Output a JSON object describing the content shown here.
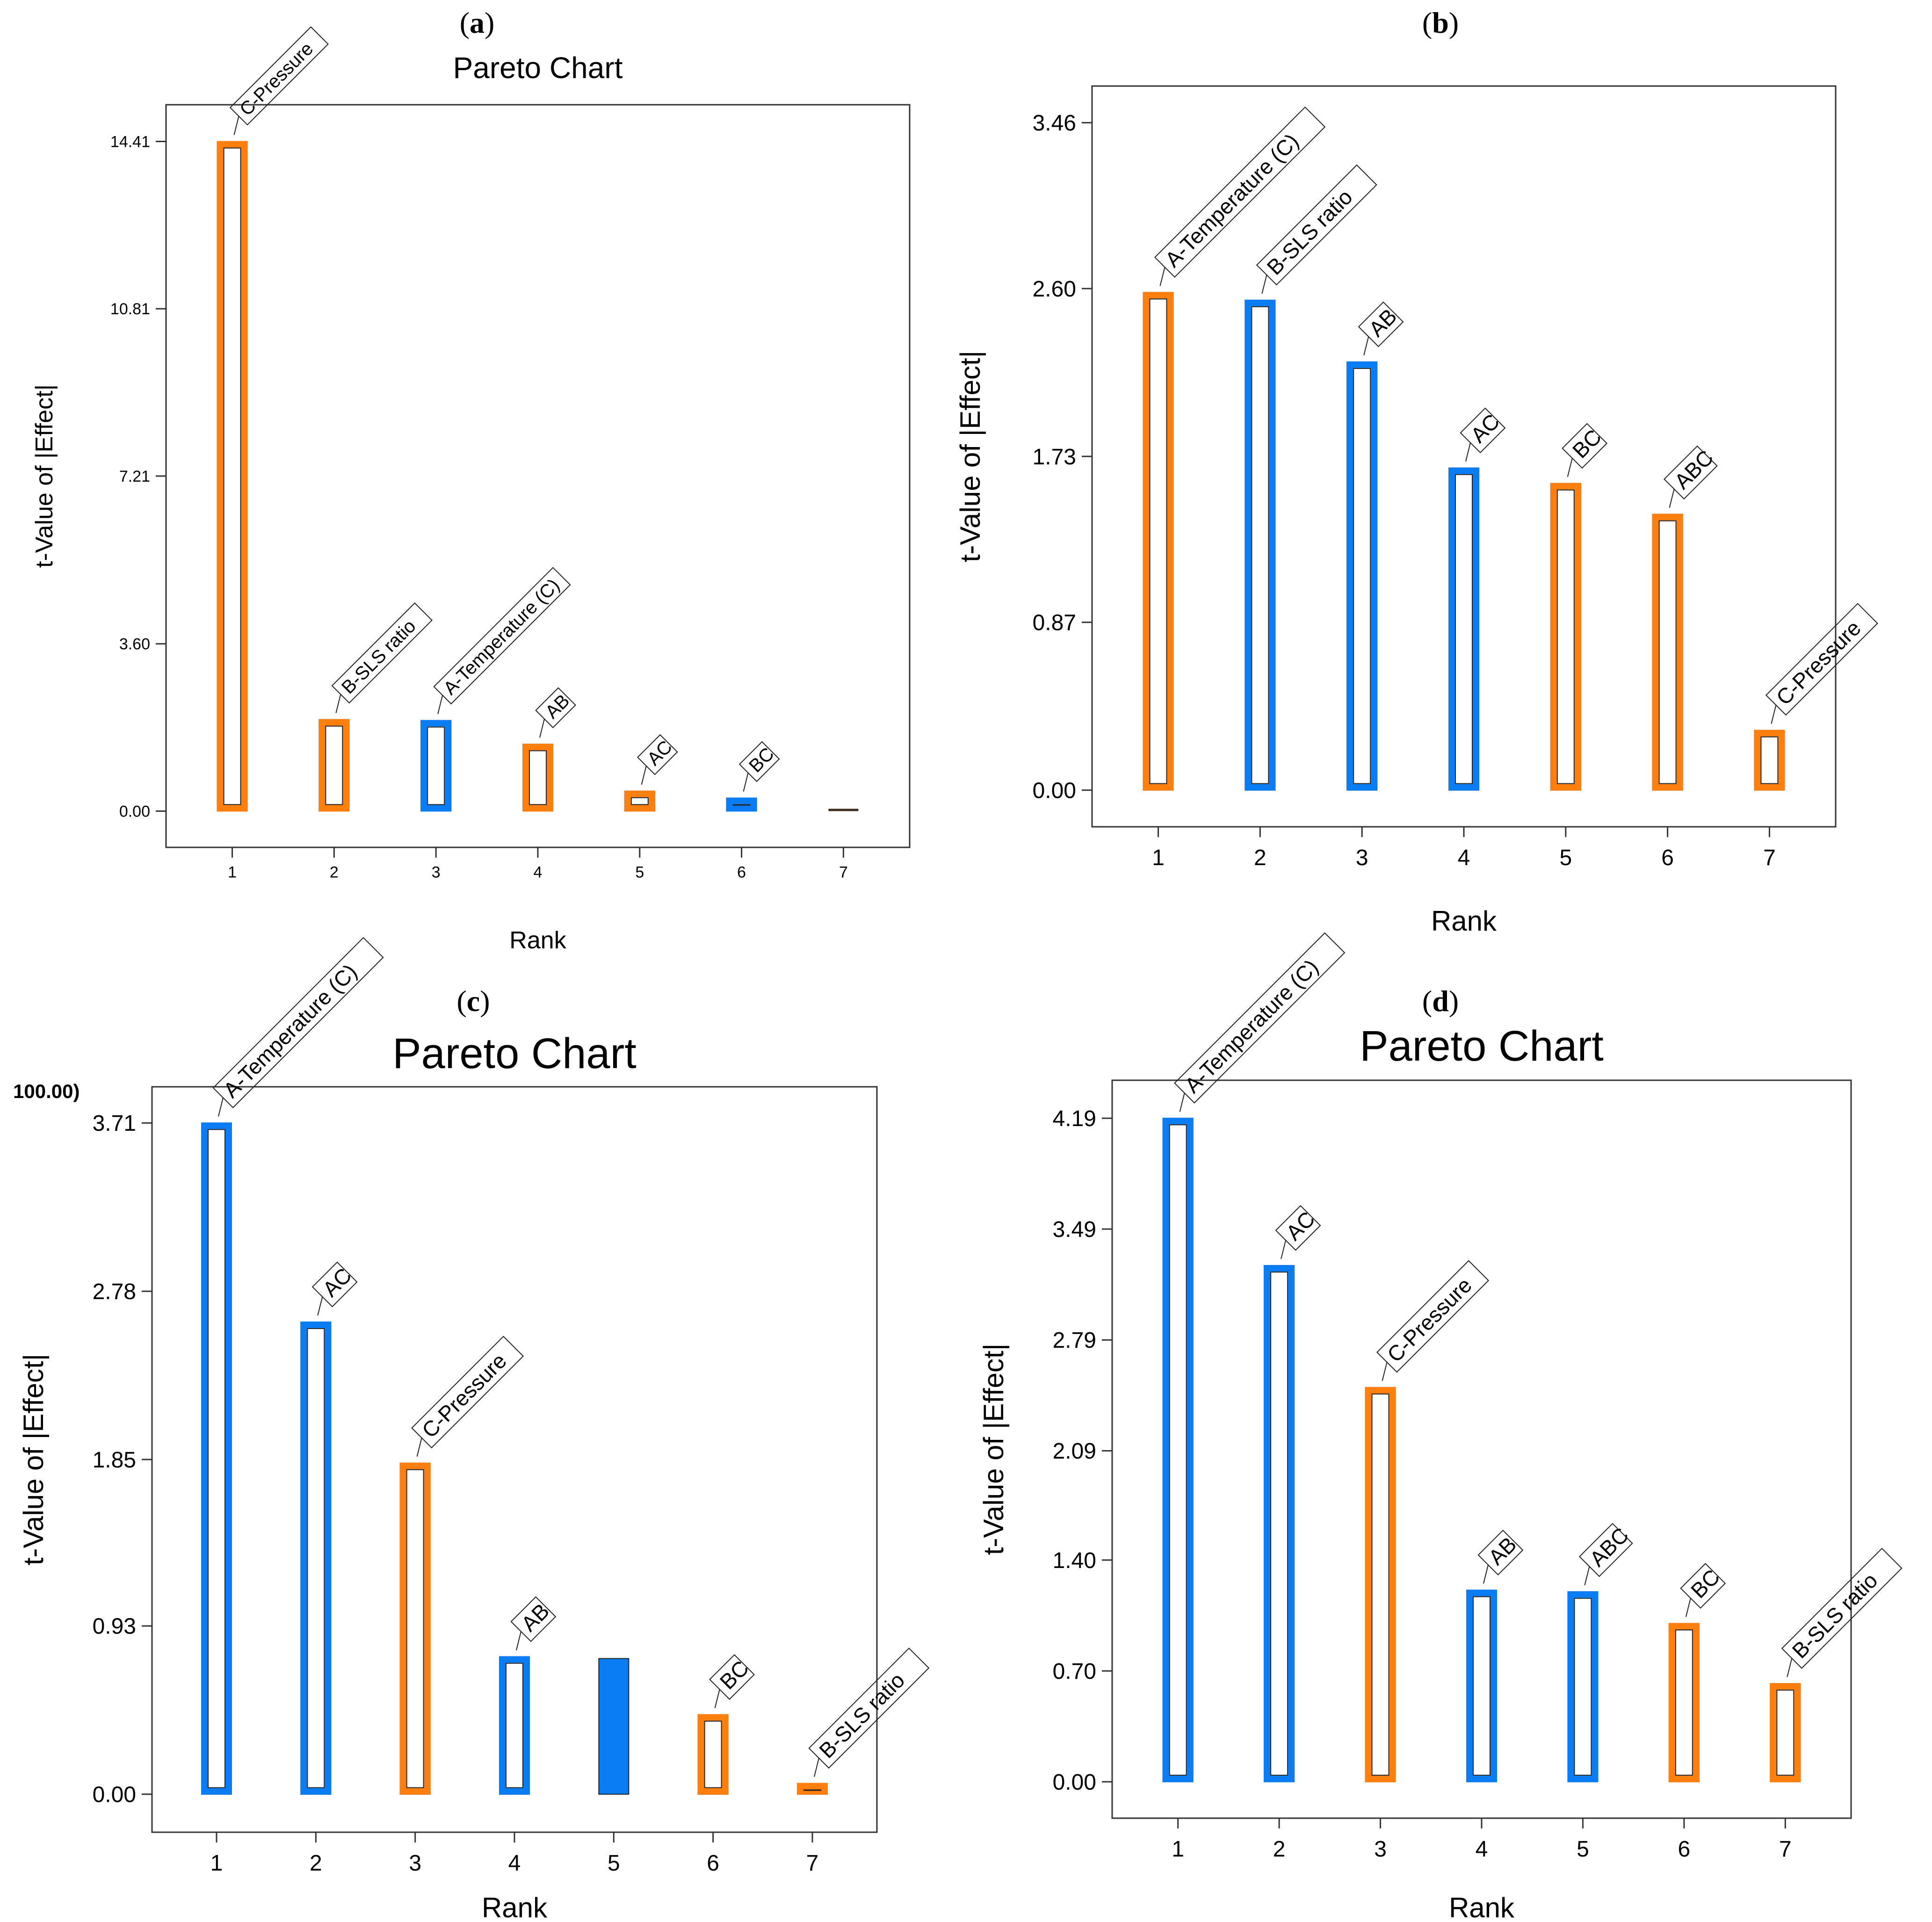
{
  "figure": {
    "colors": {
      "orange": "#FF7F0E",
      "blue": "#0A7DF5",
      "frame": "#333333",
      "dark": "#3a2a1a"
    }
  },
  "chart_data": [
    {
      "panel": "(a)",
      "type": "bar",
      "title": "Pareto Chart",
      "xlabel": "Rank",
      "ylabel": "t-Value of |Effect|",
      "ylim": [
        -0.78,
        15.2
      ],
      "yticks": [
        0.0,
        3.6,
        7.21,
        10.81,
        14.41
      ],
      "ytick_labels": [
        "0.00",
        "3.60",
        "7.21",
        "10.81",
        "14.41"
      ],
      "categories": [
        "1",
        "2",
        "3",
        "4",
        "5",
        "6",
        "7"
      ],
      "values": [
        14.41,
        1.97,
        1.95,
        1.44,
        0.43,
        0.28,
        0.04
      ],
      "bar_colors": [
        "orange",
        "orange",
        "blue",
        "orange",
        "orange",
        "blue",
        "dark"
      ],
      "bar_labels": [
        "C-Pressure",
        "B-SLS ratio",
        "A-Temperature (C)",
        "AB",
        "AC",
        "BC",
        ""
      ],
      "title_size": "small"
    },
    {
      "panel": "(b)",
      "type": "bar",
      "title": "",
      "xlabel": "Rank",
      "ylabel": "t-Value of |Effect|",
      "ylim": [
        -0.19,
        3.65
      ],
      "yticks": [
        0.0,
        0.87,
        1.73,
        2.6,
        3.46
      ],
      "ytick_labels": [
        "0.00",
        "0.87",
        "1.73",
        "2.60",
        "3.46"
      ],
      "categories": [
        "1",
        "2",
        "3",
        "4",
        "5",
        "6",
        "7"
      ],
      "values": [
        2.58,
        2.54,
        2.22,
        1.67,
        1.59,
        1.43,
        0.31
      ],
      "bar_colors": [
        "orange",
        "blue",
        "blue",
        "blue",
        "orange",
        "orange",
        "orange"
      ],
      "bar_labels": [
        "A-Temperature (C)",
        "B-SLS ratio",
        "AB",
        "AC",
        "BC",
        "ABC",
        "C-Pressure"
      ],
      "title_size": "none"
    },
    {
      "panel": "(c)",
      "type": "bar",
      "title": "Pareto Chart",
      "xlabel": "Rank",
      "ylabel": "t-Value of |Effect|",
      "ylim": [
        -0.21,
        3.91
      ],
      "yticks": [
        0.0,
        0.93,
        1.85,
        2.78,
        3.71
      ],
      "ytick_labels": [
        "0.00",
        "0.93",
        "1.85",
        "2.78",
        "3.71"
      ],
      "categories": [
        "1",
        "2",
        "3",
        "4",
        "5",
        "6",
        "7"
      ],
      "values": [
        3.71,
        2.61,
        1.83,
        0.76,
        0.75,
        0.44,
        0.06
      ],
      "bar_colors": [
        "blue",
        "blue",
        "orange",
        "blue",
        "blue-solid",
        "orange",
        "orange"
      ],
      "bar_labels": [
        "A-Temperature (C)",
        "AC",
        "C-Pressure",
        "AB",
        "",
        "BC",
        "B-SLS ratio"
      ],
      "annotations": [
        "100.00)"
      ],
      "title_size": "large"
    },
    {
      "panel": "(d)",
      "type": "bar",
      "title": "Pareto Chart",
      "xlabel": "Rank",
      "ylabel": "t-Value of |Effect|",
      "ylim": [
        -0.23,
        4.43
      ],
      "yticks": [
        0.0,
        0.7,
        1.4,
        2.09,
        2.79,
        3.49,
        4.19
      ],
      "ytick_labels": [
        "0.00",
        "0.70",
        "1.40",
        "2.09",
        "2.79",
        "3.49",
        "4.19"
      ],
      "categories": [
        "1",
        "2",
        "3",
        "4",
        "5",
        "6",
        "7"
      ],
      "values": [
        4.19,
        3.26,
        2.49,
        1.21,
        1.2,
        1.0,
        0.62
      ],
      "bar_colors": [
        "blue",
        "blue",
        "orange",
        "blue",
        "blue",
        "orange",
        "orange"
      ],
      "bar_labels": [
        "A-Temperature (C)",
        "AC",
        "C-Pressure",
        "AB",
        "ABC",
        "BC",
        "B-SLS ratio"
      ],
      "title_size": "large"
    }
  ]
}
